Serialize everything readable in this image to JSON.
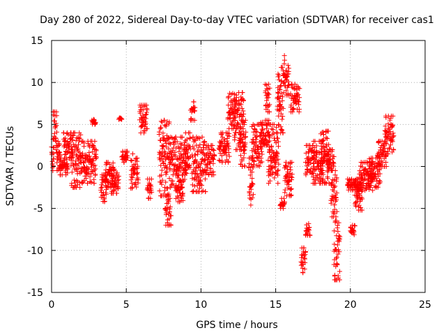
{
  "chart_data": {
    "type": "scatter",
    "title": "Day 280 of 2022, Sidereal Day-to-day VTEC variation (SDTVAR) for receiver cas1",
    "xlabel": "GPS time / hours",
    "ylabel": "SDTVAR / TECUs",
    "xlim": [
      0,
      25
    ],
    "ylim": [
      -15,
      15
    ],
    "xticks": [
      "0",
      "5",
      "10",
      "15",
      "20",
      "25"
    ],
    "yticks": [
      "-15",
      "-10",
      "-5",
      "0",
      "5",
      "10",
      "15"
    ],
    "grid": true,
    "marker": "+",
    "series_color": "#ff0000",
    "clusters": [
      {
        "x0": 0.0,
        "x1": 0.15,
        "ylo": -0.5,
        "yhi": 3.0
      },
      {
        "x0": 0.1,
        "x1": 0.35,
        "ylo": 2.0,
        "yhi": 6.5
      },
      {
        "x0": 0.3,
        "x1": 0.6,
        "ylo": -0.5,
        "yhi": 3.0
      },
      {
        "x0": 0.5,
        "x1": 1.1,
        "ylo": -1.0,
        "yhi": 1.0
      },
      {
        "x0": 0.8,
        "x1": 1.4,
        "ylo": 1.0,
        "yhi": 4.0
      },
      {
        "x0": 1.3,
        "x1": 2.0,
        "ylo": -2.5,
        "yhi": 4.0
      },
      {
        "x0": 2.0,
        "x1": 3.0,
        "ylo": -2.0,
        "yhi": 3.0
      },
      {
        "x0": 2.7,
        "x1": 2.95,
        "ylo": 5.0,
        "yhi": 5.6
      },
      {
        "x0": 3.3,
        "x1": 3.7,
        "ylo": -4.2,
        "yhi": -1.0
      },
      {
        "x0": 3.6,
        "x1": 4.2,
        "ylo": -2.5,
        "yhi": 0.5
      },
      {
        "x0": 4.0,
        "x1": 4.5,
        "ylo": -3.2,
        "yhi": -0.5
      },
      {
        "x0": 4.5,
        "x1": 4.7,
        "ylo": 5.6,
        "yhi": 5.9
      },
      {
        "x0": 4.7,
        "x1": 5.1,
        "ylo": 0.5,
        "yhi": 1.8
      },
      {
        "x0": 5.3,
        "x1": 5.8,
        "ylo": -2.6,
        "yhi": 1.5
      },
      {
        "x0": 5.9,
        "x1": 6.4,
        "ylo": 4.0,
        "yhi": 7.3
      },
      {
        "x0": 6.4,
        "x1": 6.7,
        "ylo": -3.8,
        "yhi": -1.5
      },
      {
        "x0": 7.2,
        "x1": 7.9,
        "ylo": -3.5,
        "yhi": 5.5
      },
      {
        "x0": 7.6,
        "x1": 8.0,
        "ylo": -7.0,
        "yhi": -3.5
      },
      {
        "x0": 7.9,
        "x1": 9.0,
        "ylo": -2.5,
        "yhi": 3.5
      },
      {
        "x0": 8.3,
        "x1": 8.8,
        "ylo": -4.2,
        "yhi": -1.0
      },
      {
        "x0": 8.9,
        "x1": 9.3,
        "ylo": -1.0,
        "yhi": 4.0
      },
      {
        "x0": 9.3,
        "x1": 9.6,
        "ylo": 5.5,
        "yhi": 7.7
      },
      {
        "x0": 9.4,
        "x1": 10.3,
        "ylo": -3.0,
        "yhi": 3.5
      },
      {
        "x0": 10.3,
        "x1": 10.9,
        "ylo": -1.0,
        "yhi": 2.5
      },
      {
        "x0": 11.2,
        "x1": 11.9,
        "ylo": 0.5,
        "yhi": 4.0
      },
      {
        "x0": 11.8,
        "x1": 12.3,
        "ylo": 4.5,
        "yhi": 8.7
      },
      {
        "x0": 12.2,
        "x1": 12.9,
        "ylo": 2.0,
        "yhi": 8.8
      },
      {
        "x0": 12.6,
        "x1": 13.0,
        "ylo": 0.0,
        "yhi": 5.5
      },
      {
        "x0": 13.2,
        "x1": 13.5,
        "ylo": -4.6,
        "yhi": 1.0
      },
      {
        "x0": 13.4,
        "x1": 14.1,
        "ylo": 0.0,
        "yhi": 5.0
      },
      {
        "x0": 14.0,
        "x1": 14.6,
        "ylo": 2.0,
        "yhi": 5.5
      },
      {
        "x0": 14.3,
        "x1": 14.6,
        "ylo": 6.5,
        "yhi": 9.8
      },
      {
        "x0": 14.5,
        "x1": 15.2,
        "ylo": -2.0,
        "yhi": 5.0
      },
      {
        "x0": 15.1,
        "x1": 15.5,
        "ylo": 4.0,
        "yhi": 11.8
      },
      {
        "x0": 15.3,
        "x1": 15.6,
        "ylo": -5.0,
        "yhi": -3.8
      },
      {
        "x0": 15.5,
        "x1": 15.9,
        "ylo": 8.5,
        "yhi": 13.2
      },
      {
        "x0": 15.6,
        "x1": 16.1,
        "ylo": -3.5,
        "yhi": 0.5
      },
      {
        "x0": 16.0,
        "x1": 16.6,
        "ylo": 6.5,
        "yhi": 9.8
      },
      {
        "x0": 16.7,
        "x1": 17.0,
        "ylo": -12.8,
        "yhi": -9.7
      },
      {
        "x0": 17.0,
        "x1": 17.3,
        "ylo": -8.2,
        "yhi": -6.8
      },
      {
        "x0": 17.0,
        "x1": 17.6,
        "ylo": -1.0,
        "yhi": 2.5
      },
      {
        "x0": 17.5,
        "x1": 18.2,
        "ylo": -2.0,
        "yhi": 3.0
      },
      {
        "x0": 18.0,
        "x1": 18.6,
        "ylo": -2.0,
        "yhi": 4.2
      },
      {
        "x0": 18.4,
        "x1": 18.9,
        "ylo": -0.5,
        "yhi": 2.0
      },
      {
        "x0": 18.7,
        "x1": 19.1,
        "ylo": -6.0,
        "yhi": -0.5
      },
      {
        "x0": 18.9,
        "x1": 19.3,
        "ylo": -13.5,
        "yhi": -6.5
      },
      {
        "x0": 19.8,
        "x1": 20.6,
        "ylo": -2.8,
        "yhi": -1.5
      },
      {
        "x0": 20.0,
        "x1": 20.3,
        "ylo": -8.2,
        "yhi": -7.0
      },
      {
        "x0": 20.3,
        "x1": 20.8,
        "ylo": -5.2,
        "yhi": -1.5
      },
      {
        "x0": 20.6,
        "x1": 21.5,
        "ylo": -3.0,
        "yhi": 0.5
      },
      {
        "x0": 21.2,
        "x1": 22.0,
        "ylo": -2.5,
        "yhi": 1.0
      },
      {
        "x0": 21.8,
        "x1": 22.4,
        "ylo": 0.0,
        "yhi": 3.0
      },
      {
        "x0": 22.3,
        "x1": 22.9,
        "ylo": 1.5,
        "yhi": 6.0
      }
    ]
  }
}
